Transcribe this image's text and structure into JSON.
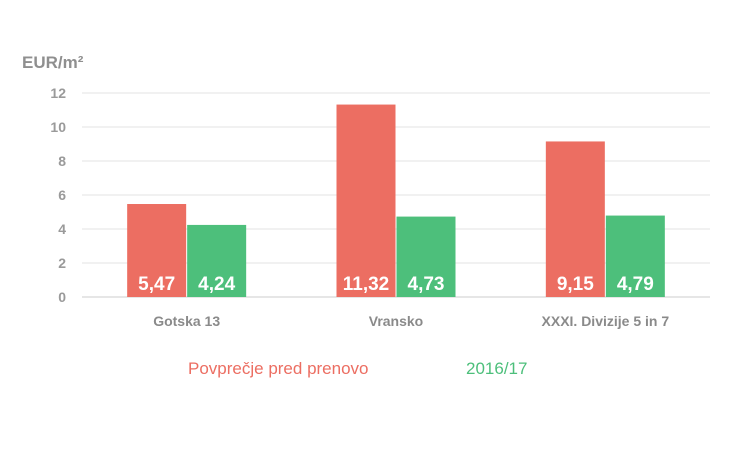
{
  "chart_data": {
    "type": "bar",
    "ylabel": "EUR/m²",
    "ylim": [
      0,
      12
    ],
    "yticks": [
      0,
      2,
      4,
      6,
      8,
      10,
      12
    ],
    "grid": true,
    "legend_position": "bottom",
    "categories": [
      "Gotska 13",
      "Vransko",
      "XXXI. Divizije 5 in 7"
    ],
    "series": [
      {
        "name": "Povprečje pred prenovo",
        "color": "#ec6e62",
        "values": [
          5.47,
          11.32,
          9.15
        ],
        "labels": [
          "5,47",
          "11,32",
          "9,15"
        ]
      },
      {
        "name": "2016/17",
        "color": "#4dbf7b",
        "values": [
          4.24,
          4.73,
          4.79
        ],
        "labels": [
          "4,24",
          "4,73",
          "4,79"
        ]
      }
    ]
  }
}
